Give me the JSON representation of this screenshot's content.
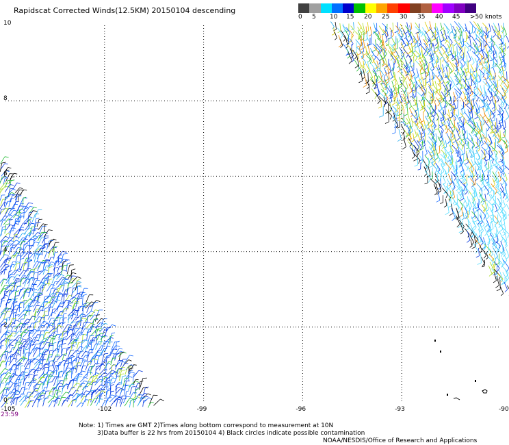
{
  "title": "Rapidscat Corrected Winds(12.5KM) 20150104 descending",
  "colorbar": {
    "colors": [
      "#404040",
      "#a0a0a0",
      "#00e0ff",
      "#0070ff",
      "#0000cc",
      "#00c000",
      "#ffff00",
      "#ffa500",
      "#ff4000",
      "#ff0000",
      "#804020",
      "#b06040",
      "#ff00ff",
      "#a000ff",
      "#8000c0",
      "#400080"
    ],
    "labels": [
      "0",
      "5",
      "10",
      "15",
      "20",
      "25",
      "30",
      "35",
      "40",
      "45",
      ">50 knots"
    ]
  },
  "map": {
    "lat_labels": [
      "10",
      "8",
      "6",
      "4",
      "2",
      "0"
    ],
    "lon_labels": [
      "-105",
      "-102",
      "-99",
      "-96",
      "-93",
      "-90"
    ],
    "time_label": "23:59"
  },
  "wind_style": {
    "colors": [
      "#0033dd",
      "#1166ff",
      "#22aaee",
      "#55ddff",
      "#22bb33",
      "#aadd22",
      "#ddcc00",
      "#ee8800",
      "#000000"
    ],
    "left_swath_colors": [
      0,
      0,
      1,
      1,
      2,
      0,
      1,
      4,
      5,
      0,
      1
    ],
    "right_swath_colors": [
      0,
      1,
      2,
      3,
      0,
      4,
      5,
      6,
      1,
      2,
      3,
      0,
      7
    ]
  },
  "notes": {
    "line1": "Note: 1) Times are GMT 2)Times along bottom correspond to measurement at 10N",
    "line2": "3)Data buffer is 22 hrs from 20150104 4) Black circles indicate possible contamination",
    "credit": "NOAA/NESDIS/Office of Research and Applications"
  }
}
